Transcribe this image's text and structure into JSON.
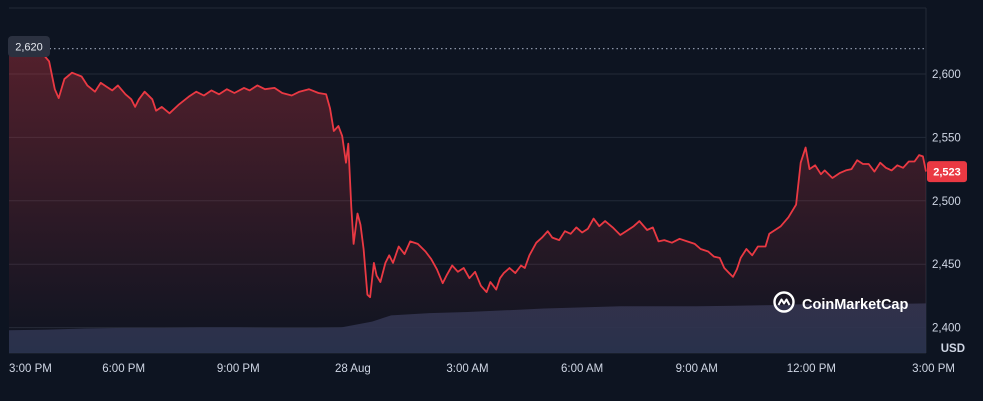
{
  "chart_data": {
    "type": "area",
    "currency_label": "USD",
    "watermark": "CoinMarketCap",
    "open_value_label": "2,620",
    "last_value_label": "2,523",
    "open_value": 2620,
    "last_value": 2523,
    "colors": {
      "background": "#0d1421",
      "line": "#ea3943",
      "badge_last": "#ea3943",
      "badge_open": "#2b3140",
      "grid": "#222a38",
      "volume": "#2b3450"
    },
    "ylim": [
      2380,
      2652
    ],
    "y_ticks": [
      {
        "value": 2400,
        "label": "2,400"
      },
      {
        "value": 2450,
        "label": "2,450"
      },
      {
        "value": 2500,
        "label": "2,500"
      },
      {
        "value": 2550,
        "label": "2,550"
      },
      {
        "value": 2600,
        "label": "2,600"
      }
    ],
    "x_range_hours": [
      0,
      24
    ],
    "x_ticks": [
      {
        "hour": 0,
        "label": "3:00 PM"
      },
      {
        "hour": 3,
        "label": "6:00 PM"
      },
      {
        "hour": 6,
        "label": "9:00 PM"
      },
      {
        "hour": 9,
        "label": "28 Aug"
      },
      {
        "hour": 12,
        "label": "3:00 AM"
      },
      {
        "hour": 15,
        "label": "6:00 AM"
      },
      {
        "hour": 18,
        "label": "9:00 AM"
      },
      {
        "hour": 21,
        "label": "12:00 PM"
      },
      {
        "hour": 24,
        "label": "3:00 PM"
      }
    ],
    "series": [
      {
        "points": [
          [
            0.0,
            2620
          ],
          [
            0.85,
            2617
          ],
          [
            1.05,
            2610
          ],
          [
            1.2,
            2588
          ],
          [
            1.3,
            2581
          ],
          [
            1.45,
            2596
          ],
          [
            1.65,
            2601
          ],
          [
            1.9,
            2598
          ],
          [
            2.05,
            2591
          ],
          [
            2.25,
            2586
          ],
          [
            2.4,
            2593
          ],
          [
            2.55,
            2590
          ],
          [
            2.7,
            2587
          ],
          [
            2.85,
            2591
          ],
          [
            3.05,
            2584
          ],
          [
            3.2,
            2580
          ],
          [
            3.3,
            2574
          ],
          [
            3.4,
            2580
          ],
          [
            3.55,
            2586
          ],
          [
            3.75,
            2580
          ],
          [
            3.85,
            2571
          ],
          [
            4.0,
            2574
          ],
          [
            4.2,
            2569
          ],
          [
            4.45,
            2576
          ],
          [
            4.7,
            2582
          ],
          [
            4.9,
            2586
          ],
          [
            5.1,
            2583
          ],
          [
            5.3,
            2587
          ],
          [
            5.5,
            2584
          ],
          [
            5.7,
            2588
          ],
          [
            5.9,
            2585
          ],
          [
            6.15,
            2589
          ],
          [
            6.3,
            2587
          ],
          [
            6.5,
            2591
          ],
          [
            6.7,
            2588
          ],
          [
            6.95,
            2589
          ],
          [
            7.15,
            2585
          ],
          [
            7.4,
            2583
          ],
          [
            7.6,
            2586
          ],
          [
            7.85,
            2588
          ],
          [
            8.1,
            2585
          ],
          [
            8.3,
            2584
          ],
          [
            8.4,
            2573
          ],
          [
            8.5,
            2555
          ],
          [
            8.62,
            2559
          ],
          [
            8.72,
            2551
          ],
          [
            8.82,
            2530
          ],
          [
            8.88,
            2545
          ],
          [
            8.96,
            2495
          ],
          [
            9.02,
            2466
          ],
          [
            9.12,
            2490
          ],
          [
            9.2,
            2481
          ],
          [
            9.28,
            2462
          ],
          [
            9.38,
            2426
          ],
          [
            9.45,
            2424
          ],
          [
            9.55,
            2451
          ],
          [
            9.62,
            2441
          ],
          [
            9.72,
            2436
          ],
          [
            9.85,
            2451
          ],
          [
            9.95,
            2457
          ],
          [
            10.05,
            2451
          ],
          [
            10.2,
            2464
          ],
          [
            10.35,
            2458
          ],
          [
            10.5,
            2468
          ],
          [
            10.7,
            2466
          ],
          [
            10.9,
            2460
          ],
          [
            11.05,
            2454
          ],
          [
            11.2,
            2446
          ],
          [
            11.35,
            2435
          ],
          [
            11.45,
            2441
          ],
          [
            11.6,
            2449
          ],
          [
            11.75,
            2444
          ],
          [
            11.9,
            2447
          ],
          [
            12.05,
            2439
          ],
          [
            12.2,
            2444
          ],
          [
            12.35,
            2433
          ],
          [
            12.5,
            2428
          ],
          [
            12.6,
            2436
          ],
          [
            12.75,
            2430
          ],
          [
            12.85,
            2439
          ],
          [
            12.95,
            2443
          ],
          [
            13.1,
            2447
          ],
          [
            13.25,
            2443
          ],
          [
            13.4,
            2449
          ],
          [
            13.5,
            2447
          ],
          [
            13.62,
            2457
          ],
          [
            13.8,
            2467
          ],
          [
            13.95,
            2471
          ],
          [
            14.1,
            2476
          ],
          [
            14.22,
            2471
          ],
          [
            14.4,
            2469
          ],
          [
            14.55,
            2476
          ],
          [
            14.7,
            2474
          ],
          [
            14.85,
            2479
          ],
          [
            15.0,
            2475
          ],
          [
            15.15,
            2478
          ],
          [
            15.3,
            2486
          ],
          [
            15.45,
            2480
          ],
          [
            15.6,
            2484
          ],
          [
            15.8,
            2479
          ],
          [
            16.0,
            2473
          ],
          [
            16.15,
            2476
          ],
          [
            16.35,
            2480
          ],
          [
            16.5,
            2484
          ],
          [
            16.7,
            2477
          ],
          [
            16.85,
            2479
          ],
          [
            17.0,
            2468
          ],
          [
            17.15,
            2469
          ],
          [
            17.35,
            2467
          ],
          [
            17.55,
            2470
          ],
          [
            17.75,
            2468
          ],
          [
            17.95,
            2466
          ],
          [
            18.1,
            2462
          ],
          [
            18.3,
            2460
          ],
          [
            18.45,
            2456
          ],
          [
            18.6,
            2455
          ],
          [
            18.72,
            2447
          ],
          [
            18.85,
            2443
          ],
          [
            18.95,
            2440
          ],
          [
            19.05,
            2446
          ],
          [
            19.15,
            2455
          ],
          [
            19.3,
            2462
          ],
          [
            19.45,
            2457
          ],
          [
            19.6,
            2464
          ],
          [
            19.8,
            2464
          ],
          [
            19.9,
            2474
          ],
          [
            20.05,
            2477
          ],
          [
            20.2,
            2480
          ],
          [
            20.4,
            2487
          ],
          [
            20.6,
            2497
          ],
          [
            20.72,
            2530
          ],
          [
            20.85,
            2542
          ],
          [
            20.95,
            2525
          ],
          [
            21.1,
            2528
          ],
          [
            21.25,
            2521
          ],
          [
            21.35,
            2524
          ],
          [
            21.55,
            2518
          ],
          [
            21.75,
            2522
          ],
          [
            21.9,
            2524
          ],
          [
            22.05,
            2525
          ],
          [
            22.2,
            2532
          ],
          [
            22.35,
            2529
          ],
          [
            22.5,
            2529
          ],
          [
            22.65,
            2523
          ],
          [
            22.8,
            2530
          ],
          [
            22.95,
            2526
          ],
          [
            23.1,
            2524
          ],
          [
            23.25,
            2528
          ],
          [
            23.4,
            2526
          ],
          [
            23.55,
            2531
          ],
          [
            23.7,
            2531
          ],
          [
            23.82,
            2536
          ],
          [
            23.92,
            2535
          ],
          [
            24.0,
            2523
          ]
        ]
      }
    ],
    "volume": [
      [
        0.0,
        0.4
      ],
      [
        1.0,
        0.41
      ],
      [
        2.0,
        0.43
      ],
      [
        3.0,
        0.44
      ],
      [
        4.0,
        0.44
      ],
      [
        5.0,
        0.45
      ],
      [
        6.0,
        0.45
      ],
      [
        7.0,
        0.44
      ],
      [
        8.0,
        0.44
      ],
      [
        8.7,
        0.45
      ],
      [
        9.5,
        0.55
      ],
      [
        10.0,
        0.66
      ],
      [
        11.0,
        0.7
      ],
      [
        12.0,
        0.72
      ],
      [
        13.0,
        0.75
      ],
      [
        14.0,
        0.78
      ],
      [
        15.0,
        0.8
      ],
      [
        16.0,
        0.82
      ],
      [
        17.0,
        0.82
      ],
      [
        18.0,
        0.82
      ],
      [
        19.0,
        0.83
      ],
      [
        20.0,
        0.84
      ],
      [
        21.0,
        0.86
      ],
      [
        22.0,
        0.86
      ],
      [
        23.0,
        0.86
      ],
      [
        24.0,
        0.87
      ]
    ]
  }
}
